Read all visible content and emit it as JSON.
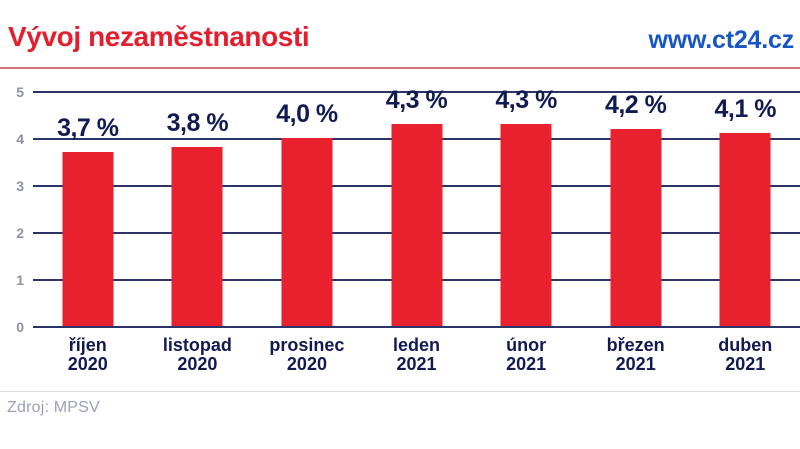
{
  "header": {
    "title": "Vývoj nezaměstnanosti",
    "site": "www.ct24.cz"
  },
  "footer": {
    "source": "Zdroj: MPSV"
  },
  "colors": {
    "bar": "#e9202e",
    "title_red": "#e41e2c",
    "site_blue": "#1656c5",
    "gridline_navy": "#2c3368",
    "label_navy": "#121a52",
    "axis_gray": "#8e91a8",
    "header_rule_red": "#d7717b",
    "footer_rule_gray": "#d9dbe4",
    "source_gray": "#9ea0b6"
  },
  "chart_data": {
    "type": "bar",
    "title": "Vývoj nezaměstnanosti",
    "categories": [
      "říjen 2020",
      "listopad 2020",
      "prosinec 2020",
      "leden 2021",
      "únor 2021",
      "březen 2021",
      "duben 2021"
    ],
    "category_lines": [
      [
        "říjen",
        "2020"
      ],
      [
        "listopad",
        "2020"
      ],
      [
        "prosinec",
        "2020"
      ],
      [
        "leden",
        "2021"
      ],
      [
        "únor",
        "2021"
      ],
      [
        "březen",
        "2021"
      ],
      [
        "duben",
        "2021"
      ]
    ],
    "values": [
      3.7,
      3.8,
      4.0,
      4.3,
      4.3,
      4.2,
      4.1
    ],
    "value_labels": [
      "3,7 %",
      "3,8 %",
      "4,0 %",
      "4,3 %",
      "4,3 %",
      "4,2 %",
      "4,1 %"
    ],
    "xlabel": "",
    "ylabel": "",
    "ylim": [
      0,
      5
    ],
    "yticks": [
      0,
      1,
      2,
      3,
      4,
      5
    ],
    "grid": true,
    "legend": false,
    "bar_color": "#e9202e"
  }
}
